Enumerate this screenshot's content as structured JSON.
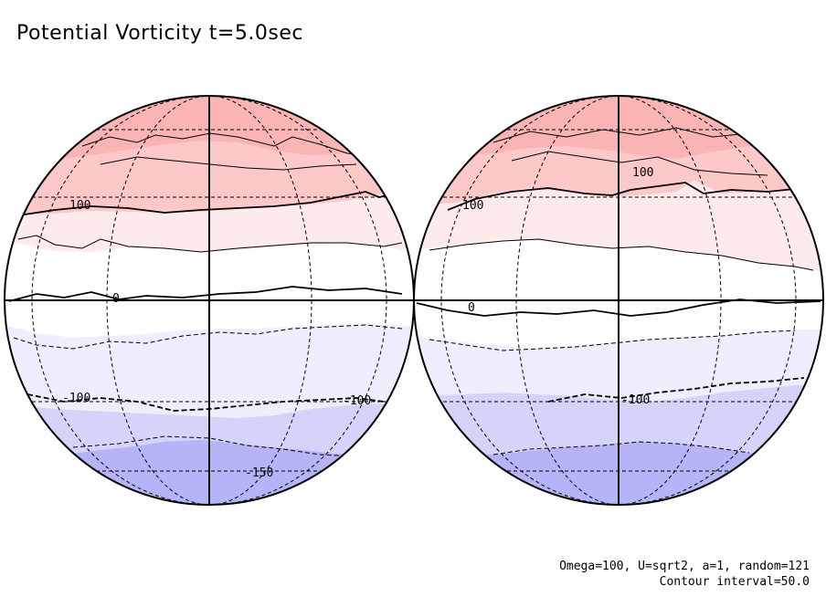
{
  "title": "Potential Vorticity t=5.0sec",
  "footnotes": {
    "params": "Omega=100, U=sqrt2, a=1, random=121",
    "interval": "Contour interval=50.0"
  },
  "globes": [
    {
      "contour_labels": [
        "100",
        "0",
        "-100",
        "-100",
        "-150"
      ]
    },
    {
      "contour_labels": [
        "100",
        "100",
        "0",
        "-100"
      ]
    }
  ],
  "colors": {
    "band_n3": "#fbb4b4",
    "band_n2": "#fcc8c8",
    "band_n1": "#fdeaea",
    "band_0": "#ffffff",
    "band_s1": "#eeeefc",
    "band_s2": "#d4d4fb",
    "band_s3": "#b4b4f6"
  }
}
